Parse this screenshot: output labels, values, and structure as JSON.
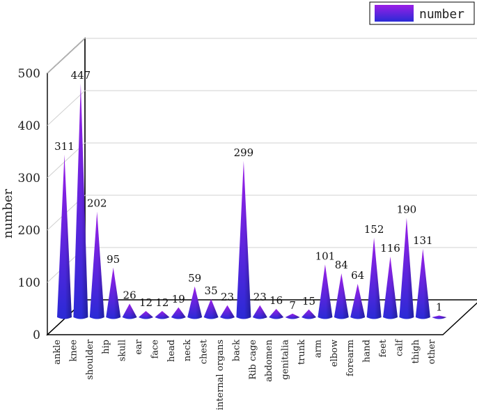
{
  "chart_data": {
    "type": "bar",
    "style": "3d-cone",
    "title": "",
    "xlabel": "",
    "ylabel": "number",
    "ylim": [
      0,
      500
    ],
    "yticks": [
      0,
      100,
      200,
      300,
      400,
      500
    ],
    "grid": true,
    "legend": {
      "position": "top-right",
      "label": "number"
    },
    "categories": [
      "ankle",
      "knee",
      "shoulder",
      "hip",
      "skull",
      "ear",
      "face",
      "head",
      "neck",
      "chest",
      "internal organs",
      "back",
      "Rib cage",
      "abdomen",
      "genitalia",
      "trunk",
      "arm",
      "elbow",
      "forearm",
      "hand",
      "feet",
      "calf",
      "thigh",
      "other"
    ],
    "series": [
      {
        "name": "number",
        "values": [
          311,
          447,
          202,
          95,
          26,
          12,
          12,
          19,
          59,
          35,
          23,
          299,
          23,
          16,
          7,
          15,
          101,
          84,
          64,
          152,
          116,
          190,
          131,
          1
        ]
      }
    ],
    "colors": {
      "top": "#9b1fe6",
      "bottom": "#2a2ad6",
      "grid": "#d0d0d0",
      "frame": "#000000"
    }
  }
}
